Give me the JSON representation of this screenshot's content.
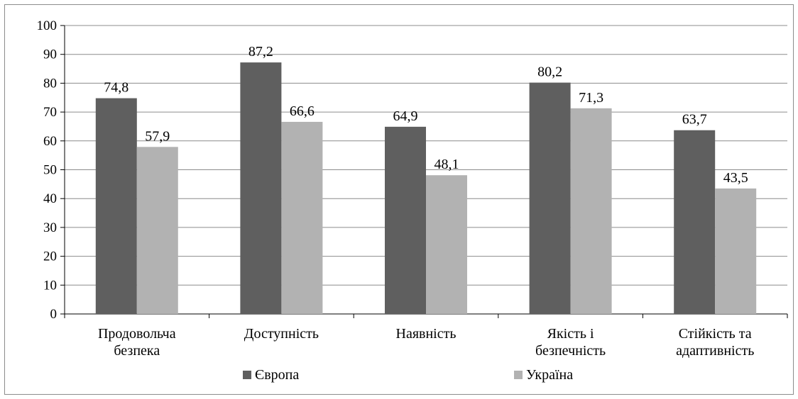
{
  "chart_data": {
    "type": "bar",
    "categories": [
      [
        "Продовольча",
        "безпека"
      ],
      [
        "Доступність"
      ],
      [
        "Наявність"
      ],
      [
        "Якість і",
        "безпечність"
      ],
      [
        "Стійкість та",
        "адаптивність"
      ]
    ],
    "series": [
      {
        "name": "Європа",
        "values": [
          74.8,
          87.2,
          64.9,
          80.2,
          63.7
        ],
        "labels": [
          "74,8",
          "87,2",
          "64,9",
          "80,2",
          "63,7"
        ],
        "color": "#5f5f5f"
      },
      {
        "name": "Україна",
        "values": [
          57.9,
          66.6,
          48.1,
          71.3,
          43.5
        ],
        "labels": [
          "57,9",
          "66,6",
          "48,1",
          "71,3",
          "43,5"
        ],
        "color": "#b2b2b2"
      }
    ],
    "ylim": [
      0,
      100
    ],
    "yticks": [
      0,
      10,
      20,
      30,
      40,
      50,
      60,
      70,
      80,
      90,
      100
    ],
    "grid": true,
    "legend_position": "bottom",
    "title": "",
    "xlabel": "",
    "ylabel": ""
  }
}
